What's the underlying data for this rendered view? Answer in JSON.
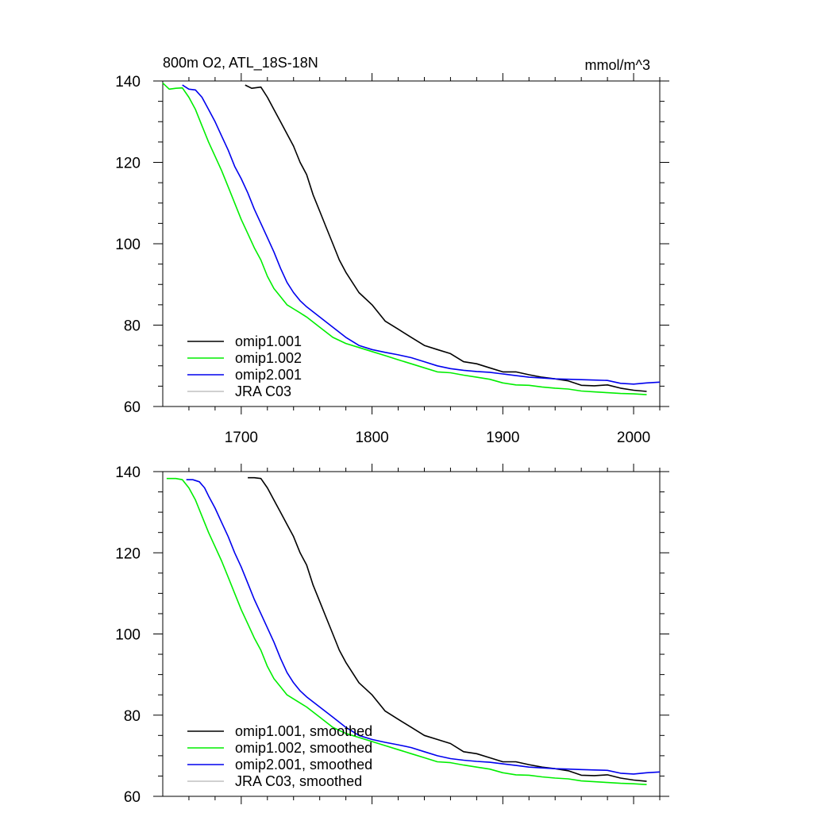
{
  "chart_data": [
    {
      "type": "line",
      "title": "800m O2, ATL_18S-18N",
      "units": "mmol/m^3",
      "xlim": [
        1640,
        2020
      ],
      "ylim": [
        60,
        140
      ],
      "x_ticks": [
        1700,
        1800,
        1900,
        2000
      ],
      "y_ticks": [
        60,
        80,
        100,
        120,
        140
      ],
      "legend_position": "bottom-left",
      "series": [
        {
          "name": "omip1.001",
          "color": "#000000",
          "x": [
            1703,
            1708,
            1715,
            1720,
            1725,
            1730,
            1735,
            1740,
            1745,
            1750,
            1755,
            1760,
            1765,
            1770,
            1775,
            1780,
            1790,
            1800,
            1810,
            1820,
            1830,
            1840,
            1850,
            1860,
            1870,
            1880,
            1890,
            1900,
            1910,
            1920,
            1930,
            1940,
            1950,
            1960,
            1970,
            1980,
            1990,
            2000,
            2010
          ],
          "y": [
            139,
            138.2,
            138.5,
            136,
            133,
            130,
            127,
            124,
            120,
            117,
            112,
            108,
            104,
            100,
            96,
            93,
            88,
            85,
            81,
            79,
            77,
            75,
            74,
            73,
            71,
            70.5,
            69.5,
            68.5,
            68.5,
            67.8,
            67.2,
            66.8,
            66.3,
            65.2,
            65.1,
            65.3,
            64.5,
            64.0,
            63.7
          ]
        },
        {
          "name": "omip1.002",
          "color": "#00ee00",
          "x": [
            1640,
            1645,
            1650,
            1655,
            1660,
            1665,
            1670,
            1675,
            1680,
            1685,
            1690,
            1695,
            1700,
            1705,
            1710,
            1715,
            1720,
            1725,
            1730,
            1735,
            1740,
            1745,
            1750,
            1760,
            1770,
            1780,
            1790,
            1800,
            1810,
            1820,
            1830,
            1840,
            1850,
            1860,
            1870,
            1880,
            1890,
            1900,
            1910,
            1920,
            1930,
            1940,
            1950,
            1960,
            1970,
            1980,
            1990,
            2000,
            2010
          ],
          "y": [
            139.5,
            138,
            138.2,
            138.3,
            136,
            133,
            129,
            125,
            121.5,
            118,
            114,
            110,
            106,
            102.5,
            99,
            96,
            92,
            89,
            87,
            85,
            84,
            83,
            82,
            79.5,
            77,
            75.5,
            74.5,
            73.5,
            72.5,
            71.5,
            70.5,
            69.5,
            68.5,
            68.3,
            67.7,
            67.2,
            66.7,
            65.8,
            65.3,
            65.2,
            64.8,
            64.5,
            64.3,
            63.8,
            63.6,
            63.4,
            63.2,
            63.1,
            62.9
          ]
        },
        {
          "name": "omip2.001",
          "color": "#0000ee",
          "x": [
            1655,
            1660,
            1665,
            1670,
            1675,
            1680,
            1685,
            1690,
            1695,
            1700,
            1705,
            1710,
            1715,
            1720,
            1725,
            1730,
            1735,
            1740,
            1745,
            1750,
            1760,
            1770,
            1780,
            1790,
            1800,
            1810,
            1820,
            1830,
            1840,
            1850,
            1860,
            1870,
            1880,
            1890,
            1900,
            1910,
            1920,
            1930,
            1940,
            1950,
            1960,
            1970,
            1980,
            1990,
            2000,
            2010,
            2020
          ],
          "y": [
            139,
            138,
            137.8,
            136,
            133,
            130,
            126.5,
            123,
            119,
            116,
            112.5,
            108.5,
            105,
            101.5,
            98,
            94,
            90.5,
            88,
            86,
            84.5,
            82,
            79.5,
            77,
            75,
            74,
            73.3,
            72.7,
            72,
            71,
            70,
            69.3,
            68.9,
            68.6,
            68.4,
            68,
            67.6,
            67.2,
            67,
            66.8,
            66.7,
            66.6,
            66.5,
            66.4,
            65.7,
            65.5,
            65.8,
            66
          ]
        },
        {
          "name": "JRA C03",
          "color": "#c0c0c0",
          "x": [],
          "y": []
        }
      ]
    },
    {
      "type": "line",
      "xlim": [
        1640,
        2020
      ],
      "ylim": [
        60,
        140
      ],
      "y_ticks": [
        60,
        80,
        100,
        120,
        140
      ],
      "legend_position": "bottom-left",
      "series": [
        {
          "name": "omip1.001, smoothed",
          "color": "#000000",
          "x": [
            1705,
            1710,
            1715,
            1720,
            1725,
            1730,
            1735,
            1740,
            1745,
            1750,
            1755,
            1760,
            1765,
            1770,
            1775,
            1780,
            1790,
            1800,
            1810,
            1820,
            1830,
            1840,
            1850,
            1860,
            1870,
            1880,
            1890,
            1900,
            1910,
            1920,
            1930,
            1940,
            1950,
            1960,
            1970,
            1980,
            1990,
            2000,
            2010
          ],
          "y": [
            138.5,
            138.5,
            138.3,
            136,
            133,
            130,
            127,
            124,
            120,
            117,
            112,
            108,
            104,
            100,
            96,
            93,
            88,
            85,
            81,
            79,
            77,
            75,
            74,
            73,
            71,
            70.5,
            69.5,
            68.5,
            68.5,
            67.8,
            67.2,
            66.8,
            66.3,
            65.2,
            65.1,
            65.3,
            64.5,
            64.0,
            63.7
          ]
        },
        {
          "name": "omip1.002, smoothed",
          "color": "#00ee00",
          "x": [
            1643,
            1650,
            1655,
            1660,
            1665,
            1670,
            1675,
            1680,
            1685,
            1690,
            1695,
            1700,
            1705,
            1710,
            1715,
            1720,
            1725,
            1730,
            1735,
            1740,
            1745,
            1750,
            1760,
            1770,
            1780,
            1790,
            1800,
            1810,
            1820,
            1830,
            1840,
            1850,
            1860,
            1870,
            1880,
            1890,
            1900,
            1910,
            1920,
            1930,
            1940,
            1950,
            1960,
            1970,
            1980,
            1990,
            2000,
            2010
          ],
          "y": [
            138.3,
            138.3,
            138,
            136,
            133,
            129,
            125,
            121.5,
            118,
            114,
            110,
            106,
            102.5,
            99,
            96,
            92,
            89,
            87,
            85,
            84,
            83,
            82,
            79.5,
            77,
            75.5,
            74.5,
            73.5,
            72.5,
            71.5,
            70.5,
            69.5,
            68.5,
            68.3,
            67.7,
            67.2,
            66.7,
            65.8,
            65.3,
            65.2,
            64.8,
            64.5,
            64.3,
            63.8,
            63.6,
            63.4,
            63.2,
            63.1,
            62.9
          ]
        },
        {
          "name": "omip2.001, smoothed",
          "color": "#0000ee",
          "x": [
            1658,
            1663,
            1668,
            1672,
            1675,
            1680,
            1685,
            1690,
            1695,
            1700,
            1705,
            1710,
            1715,
            1720,
            1725,
            1730,
            1735,
            1740,
            1745,
            1750,
            1760,
            1770,
            1780,
            1790,
            1800,
            1810,
            1820,
            1830,
            1840,
            1850,
            1860,
            1870,
            1880,
            1890,
            1900,
            1910,
            1920,
            1930,
            1940,
            1950,
            1960,
            1970,
            1980,
            1990,
            2000,
            2010,
            2020
          ],
          "y": [
            138,
            138,
            137.5,
            136,
            134,
            131,
            127.5,
            124,
            120,
            116.5,
            112.5,
            108.5,
            105,
            101.5,
            98,
            94,
            90.5,
            88,
            86,
            84.5,
            82,
            79.5,
            77,
            75,
            74,
            73.3,
            72.7,
            72,
            71,
            70,
            69.3,
            68.9,
            68.6,
            68.4,
            68,
            67.6,
            67.2,
            67,
            66.8,
            66.7,
            66.6,
            66.5,
            66.4,
            65.7,
            65.5,
            65.8,
            66
          ]
        },
        {
          "name": "JRA C03, smoothed",
          "color": "#c0c0c0",
          "x": [],
          "y": []
        }
      ]
    }
  ]
}
